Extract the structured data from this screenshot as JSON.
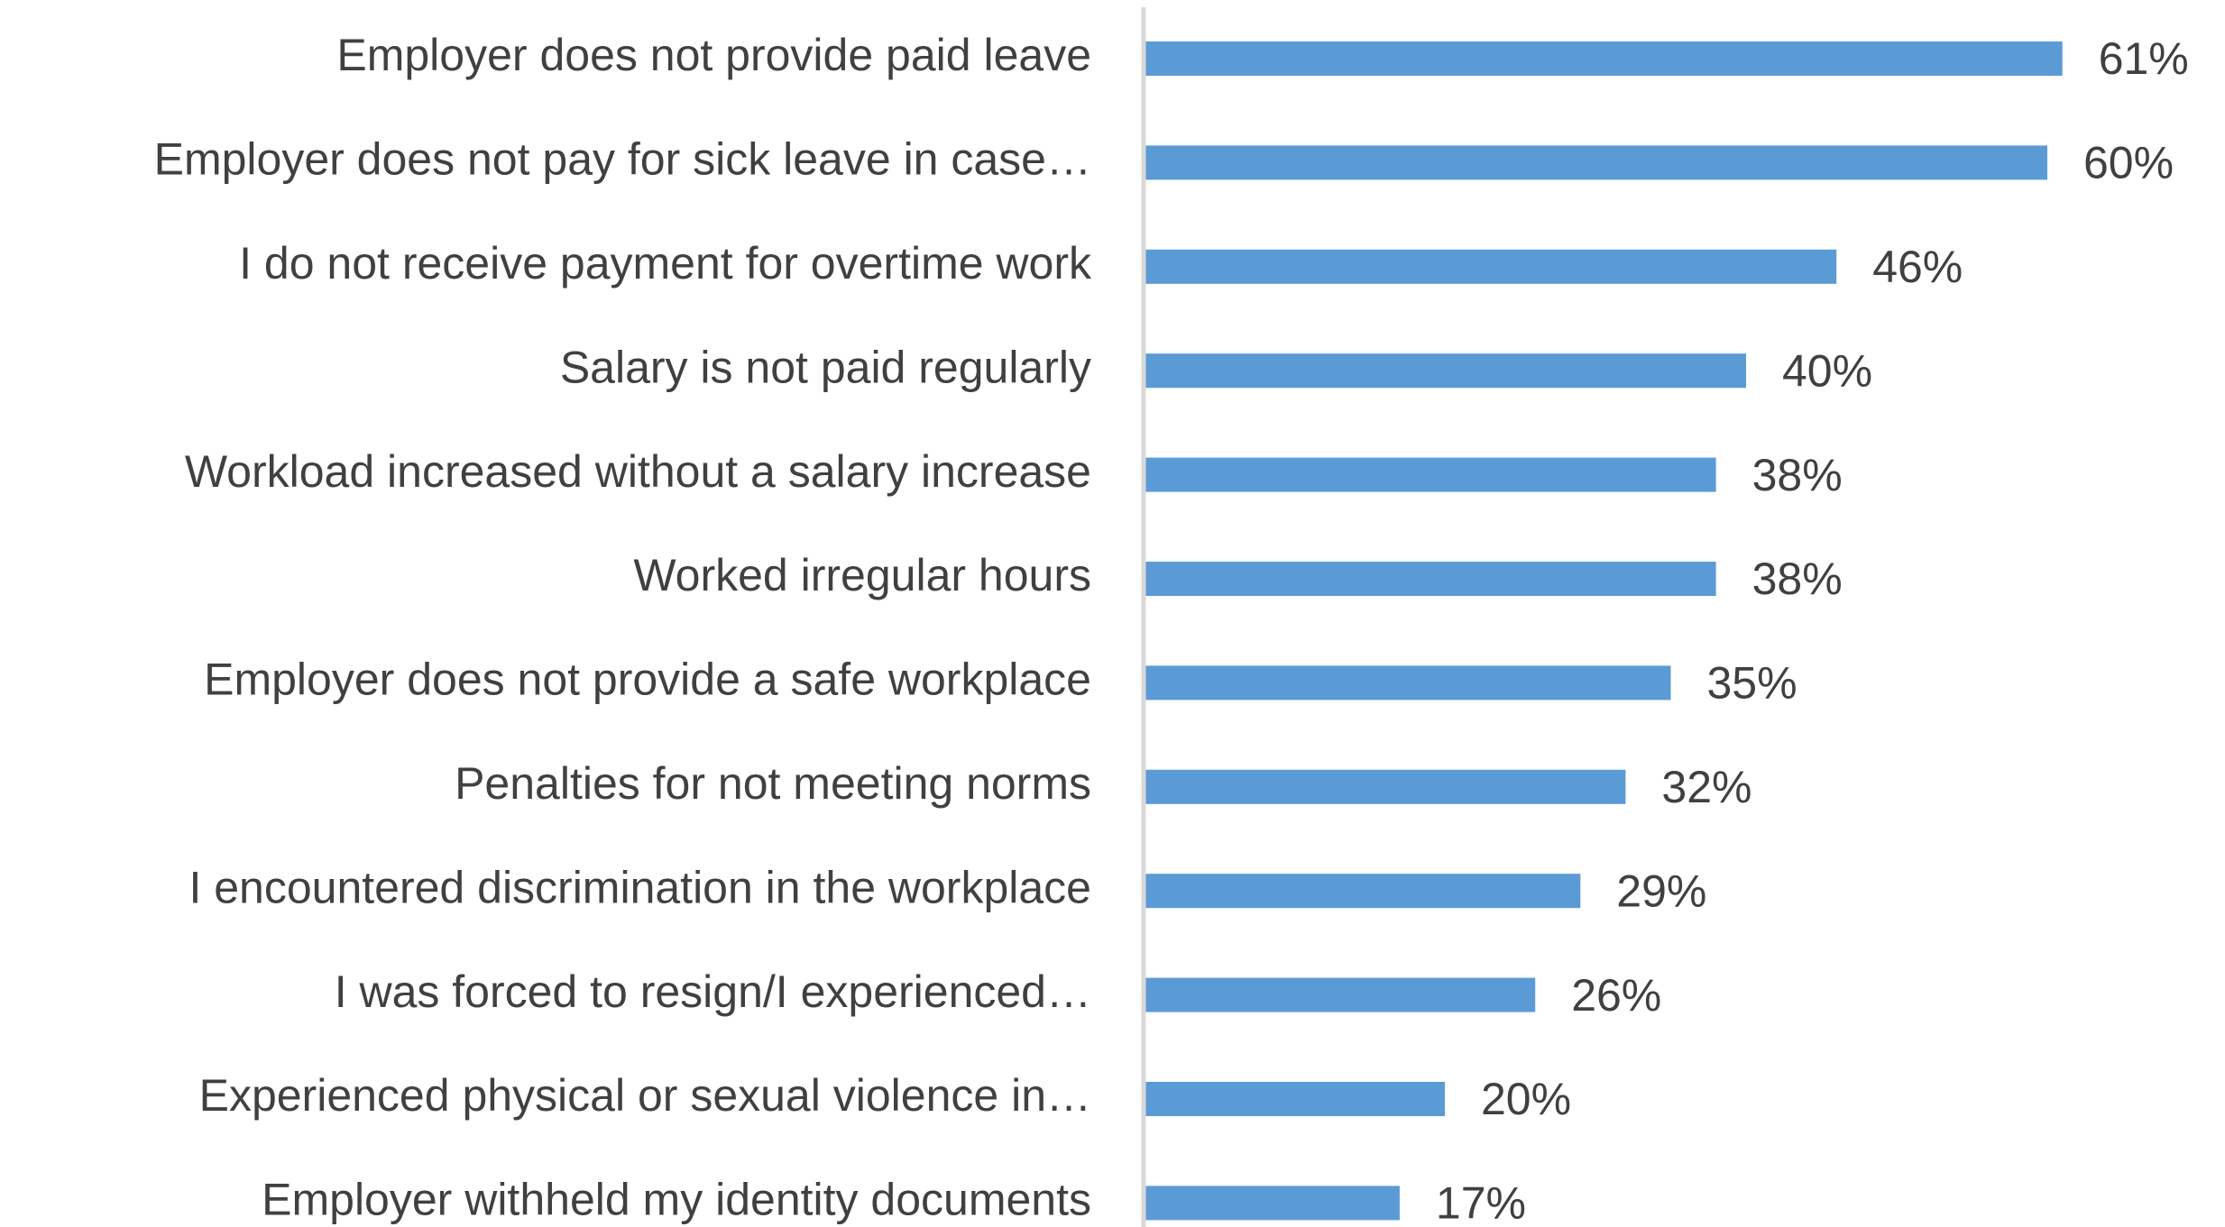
{
  "chart_data": {
    "type": "bar",
    "orientation": "horizontal",
    "categories": [
      "Employer does not provide paid leave",
      "Employer does not pay for sick leave in case…",
      "I do not receive payment for overtime work",
      "Salary is not paid regularly",
      "Workload increased without a salary increase",
      "Worked irregular hours",
      "Employer does not provide a safe workplace",
      "Penalties for not meeting norms",
      "I encountered discrimination in the workplace",
      "I was forced to resign/I experienced…",
      "Experienced physical or sexual violence in…",
      "Employer withheld my identity documents"
    ],
    "values": [
      61,
      60,
      46,
      40,
      38,
      38,
      35,
      32,
      29,
      26,
      20,
      17
    ],
    "value_labels": [
      "61%",
      "60%",
      "46%",
      "40%",
      "38%",
      "38%",
      "35%",
      "32%",
      "29%",
      "26%",
      "20%",
      "17%"
    ],
    "color": "#5b9bd5",
    "xlim": [
      0,
      70
    ]
  }
}
